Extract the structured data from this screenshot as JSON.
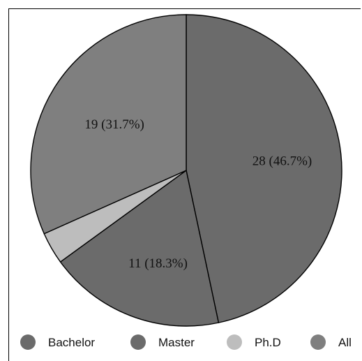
{
  "chart_data": {
    "type": "pie",
    "slices": [
      {
        "name": "Bachelor",
        "value": 28,
        "label": "28 (46.7%)",
        "color": "#6b6b6b",
        "show_label": true
      },
      {
        "name": "Master",
        "value": 11,
        "label": "11 (18.3%)",
        "color": "#6b6b6b",
        "show_label": true
      },
      {
        "name": "Ph.D",
        "value": 2,
        "label": "",
        "color": "#bdbdbd",
        "show_label": false
      },
      {
        "name": "All",
        "value": 19,
        "label": "19 (31.7%)",
        "color": "#7f7f7f",
        "show_label": true
      }
    ],
    "legend": {
      "placement": "bottom",
      "items": [
        {
          "label": "Bachelor",
          "color": "#6b6b6b"
        },
        {
          "label": "Master",
          "color": "#6b6b6b"
        },
        {
          "label": "Ph.D",
          "color": "#bdbdbd"
        },
        {
          "label": "All",
          "color": "#7f7f7f"
        }
      ]
    }
  }
}
